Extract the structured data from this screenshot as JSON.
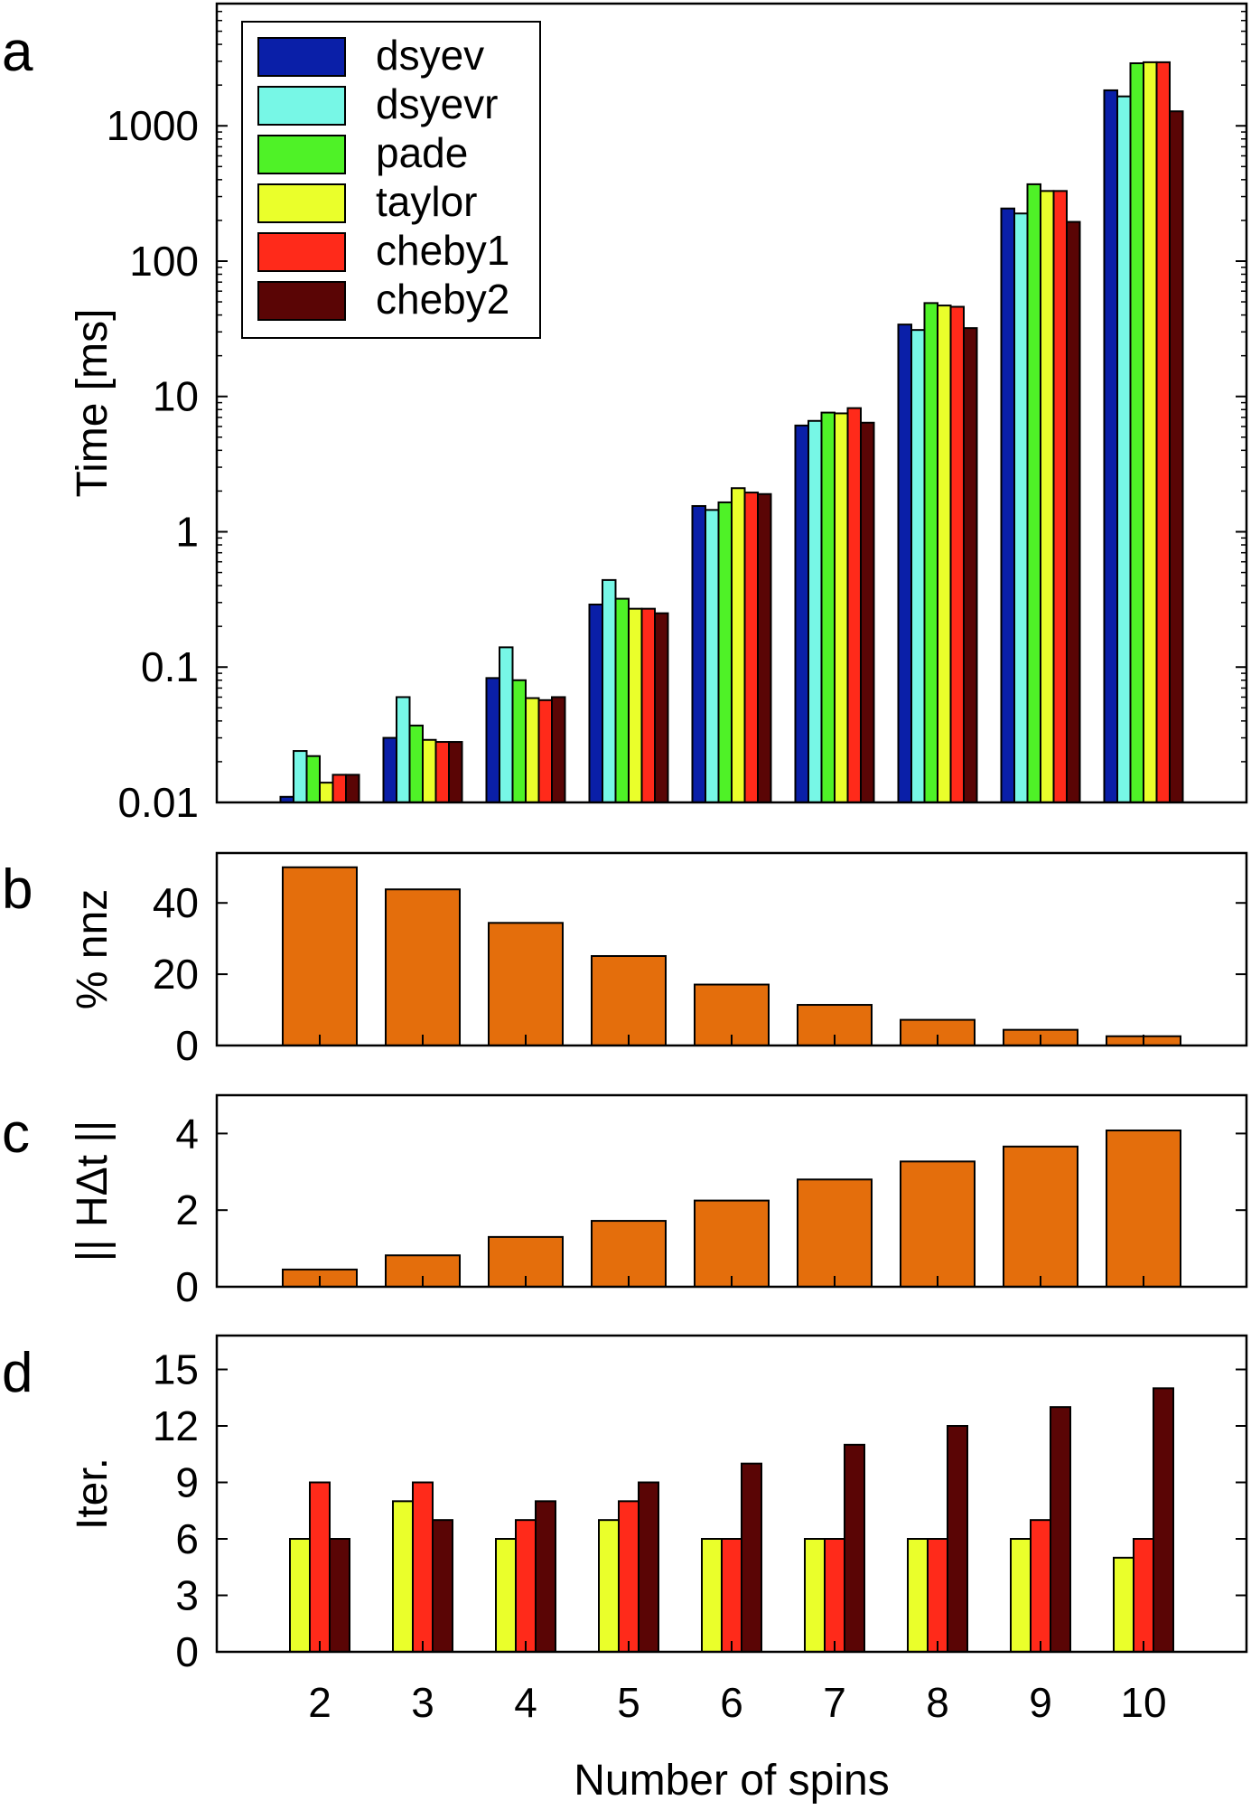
{
  "figure": {
    "xlabel": "Number of spins",
    "categories": [
      "2",
      "3",
      "4",
      "5",
      "6",
      "7",
      "8",
      "9",
      "10"
    ]
  },
  "chart_data": [
    {
      "type": "bar",
      "panel": "a",
      "ylabel": "Time [ms]",
      "yscale": "log",
      "ylim": [
        0.01,
        8000
      ],
      "yticks": [
        0.01,
        0.1,
        1,
        10,
        100,
        1000
      ],
      "ytick_labels": [
        "0.01",
        "0.1",
        "1",
        "10",
        "100",
        "1000"
      ],
      "legend_position": "top-left",
      "categories": [
        "2",
        "3",
        "4",
        "5",
        "6",
        "7",
        "8",
        "9",
        "10"
      ],
      "series": [
        {
          "name": "dsyev",
          "color": "#0a1fa8",
          "values": [
            0.011,
            0.03,
            0.083,
            0.29,
            1.55,
            6.1,
            34,
            245,
            1830
          ]
        },
        {
          "name": "dsyevr",
          "color": "#77f7e6",
          "values": [
            0.024,
            0.06,
            0.14,
            0.44,
            1.45,
            6.6,
            31,
            225,
            1650
          ]
        },
        {
          "name": "pade",
          "color": "#4ff227",
          "values": [
            0.022,
            0.037,
            0.08,
            0.32,
            1.65,
            7.6,
            49,
            370,
            2900
          ]
        },
        {
          "name": "taylor",
          "color": "#eaff2b",
          "values": [
            0.014,
            0.029,
            0.059,
            0.27,
            2.1,
            7.5,
            47,
            330,
            2950
          ]
        },
        {
          "name": "cheby1",
          "color": "#ff2a1a",
          "values": [
            0.016,
            0.028,
            0.057,
            0.27,
            1.95,
            8.2,
            46,
            330,
            2950
          ]
        },
        {
          "name": "cheby2",
          "color": "#5a0505",
          "values": [
            0.016,
            0.028,
            0.06,
            0.25,
            1.9,
            6.4,
            32,
            195,
            1280
          ]
        }
      ]
    },
    {
      "type": "bar",
      "panel": "b",
      "ylabel": "% nnz",
      "ylim": [
        0,
        54
      ],
      "yticks": [
        0,
        20,
        40
      ],
      "ytick_labels": [
        "0",
        "20",
        "40"
      ],
      "color": "#e46e0c",
      "categories": [
        "2",
        "3",
        "4",
        "5",
        "6",
        "7",
        "8",
        "9",
        "10"
      ],
      "values": [
        50,
        43.8,
        34.4,
        25.1,
        17.1,
        11.4,
        7.2,
        4.4,
        2.6
      ]
    },
    {
      "type": "bar",
      "panel": "c",
      "ylabel": "|| HΔt ||",
      "ylim": [
        0,
        5
      ],
      "yticks": [
        0,
        2,
        4
      ],
      "ytick_labels": [
        "0",
        "2",
        "4"
      ],
      "color": "#e46e0c",
      "categories": [
        "2",
        "3",
        "4",
        "5",
        "6",
        "7",
        "8",
        "9",
        "10"
      ],
      "values": [
        0.45,
        0.82,
        1.3,
        1.72,
        2.25,
        2.8,
        3.27,
        3.66,
        4.08
      ]
    },
    {
      "type": "bar",
      "panel": "d",
      "ylabel": "Iter.",
      "ylim": [
        0,
        16.8
      ],
      "yticks": [
        0,
        3,
        6,
        9,
        12,
        15
      ],
      "ytick_labels": [
        "0",
        "3",
        "6",
        "9",
        "12",
        "15"
      ],
      "categories": [
        "2",
        "3",
        "4",
        "5",
        "6",
        "7",
        "8",
        "9",
        "10"
      ],
      "series": [
        {
          "name": "taylor",
          "color": "#eaff2b",
          "values": [
            6,
            8,
            6,
            7,
            6,
            6,
            6,
            6,
            5
          ]
        },
        {
          "name": "cheby1",
          "color": "#ff2a1a",
          "values": [
            9,
            9,
            7,
            8,
            6,
            6,
            6,
            7,
            6
          ]
        },
        {
          "name": "cheby2",
          "color": "#5a0505",
          "values": [
            6,
            7,
            8,
            9,
            10,
            11,
            12,
            13,
            14
          ]
        }
      ]
    }
  ]
}
